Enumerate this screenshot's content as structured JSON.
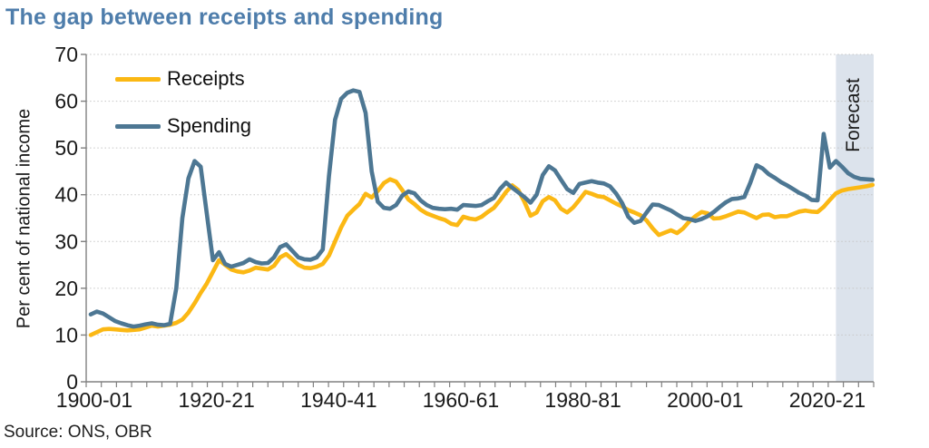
{
  "title": "The gap between receipts and spending",
  "source": "Source: ONS, OBR",
  "forecast_label": "Forecast",
  "legend": {
    "items": [
      {
        "label": "Receipts",
        "color": "#fbb814"
      },
      {
        "label": "Spending",
        "color": "#4d7793"
      }
    ]
  },
  "colors": {
    "title": "#4e7dab",
    "receipts_line": "#fbb814",
    "spending_line": "#4d7793",
    "forecast_band": "#dce3ec",
    "gridline": "#c6c6c6",
    "axis": "#808080",
    "text": "#1a1a1a"
  },
  "y_axis": {
    "title": "Per cent of national income",
    "ticks": [
      0,
      10,
      20,
      30,
      40,
      50,
      60,
      70
    ],
    "min": 0,
    "max": 70
  },
  "x_axis": {
    "labels": [
      {
        "year": 1900,
        "label": "1900-01"
      },
      {
        "year": 1920,
        "label": "1920-21"
      },
      {
        "year": 1940,
        "label": "1940-41"
      },
      {
        "year": 1960,
        "label": "1960-61"
      },
      {
        "year": 1980,
        "label": "1980-81"
      },
      {
        "year": 2000,
        "label": "2000-01"
      },
      {
        "year": 2020,
        "label": "2020-21"
      }
    ]
  },
  "forecast_band": {
    "label": "Forecast",
    "start_year": 2022,
    "end_year": 2028
  },
  "chart_data": {
    "type": "line",
    "title": "The gap between receipts and spending",
    "xlabel": "",
    "ylabel": "Per cent of national income",
    "ylim": [
      0,
      70
    ],
    "grid": "horizontal-dotted",
    "legend_position": "top-left-inside",
    "x_start_year": 1900,
    "x_end_year": 2028,
    "x_step": 1,
    "x_unit": "fiscal year",
    "annotations": [
      {
        "type": "band",
        "text": "Forecast",
        "start_year": 2022,
        "end_year": 2028
      }
    ],
    "series": [
      {
        "name": "Receipts",
        "color": "#fbb814",
        "values": [
          10.0,
          10.6,
          11.2,
          11.3,
          11.2,
          11.1,
          11.0,
          11.1,
          11.2,
          11.6,
          12.0,
          11.8,
          12.0,
          12.2,
          12.6,
          13.3,
          14.8,
          16.8,
          19.0,
          21.0,
          23.5,
          26.0,
          25.0,
          24.0,
          23.6,
          23.4,
          23.8,
          24.4,
          24.2,
          24.0,
          24.8,
          26.6,
          27.3,
          26.2,
          25.0,
          24.4,
          24.3,
          24.6,
          25.2,
          27.0,
          30.0,
          33.0,
          35.5,
          36.8,
          38.0,
          40.2,
          39.4,
          40.8,
          42.5,
          43.3,
          42.8,
          41.0,
          39.0,
          38.0,
          36.8,
          36.0,
          35.5,
          35.0,
          34.6,
          33.8,
          33.5,
          35.3,
          34.9,
          34.7,
          35.3,
          36.3,
          37.2,
          38.8,
          40.6,
          42.0,
          41.0,
          38.5,
          35.5,
          36.2,
          38.6,
          39.5,
          38.8,
          37.0,
          36.2,
          37.3,
          38.9,
          40.6,
          40.2,
          39.7,
          39.5,
          38.8,
          38.1,
          37.5,
          36.7,
          36.2,
          35.6,
          34.5,
          32.8,
          31.4,
          31.9,
          32.4,
          31.8,
          32.8,
          34.3,
          35.4,
          36.3,
          36.0,
          34.9,
          35.0,
          35.4,
          35.9,
          36.4,
          36.2,
          35.6,
          35.0,
          35.7,
          35.8,
          35.2,
          35.4,
          35.4,
          35.9,
          36.4,
          36.6,
          36.4,
          36.3,
          37.4,
          38.9,
          40.3,
          40.9,
          41.2,
          41.4,
          41.6,
          41.8,
          42.1
        ]
      },
      {
        "name": "Spending",
        "color": "#4d7793",
        "values": [
          14.4,
          15.0,
          14.6,
          13.8,
          13.0,
          12.5,
          12.1,
          11.8,
          12.0,
          12.3,
          12.5,
          12.2,
          12.1,
          12.4,
          20.0,
          35.0,
          43.5,
          47.2,
          46.0,
          36.0,
          26.0,
          27.7,
          25.2,
          24.6,
          25.0,
          25.4,
          26.2,
          25.6,
          25.3,
          25.4,
          26.6,
          28.8,
          29.4,
          28.0,
          26.6,
          26.2,
          26.1,
          26.6,
          28.3,
          44.0,
          56.0,
          60.5,
          61.8,
          62.3,
          62.0,
          57.5,
          45.0,
          38.5,
          37.2,
          37.0,
          37.8,
          39.8,
          40.7,
          40.3,
          38.8,
          37.8,
          37.2,
          37.0,
          36.9,
          37.0,
          36.8,
          37.8,
          37.7,
          37.6,
          37.8,
          38.6,
          39.3,
          41.2,
          42.6,
          41.5,
          40.5,
          39.5,
          38.3,
          40.0,
          44.2,
          46.1,
          45.2,
          43.2,
          41.2,
          40.4,
          42.3,
          42.6,
          42.9,
          42.6,
          42.4,
          41.8,
          40.3,
          38.2,
          35.3,
          34.0,
          34.4,
          36.2,
          37.9,
          37.8,
          37.2,
          36.6,
          35.8,
          35.0,
          34.8,
          34.4,
          34.8,
          35.4,
          36.3,
          37.4,
          38.4,
          39.1,
          39.2,
          39.5,
          42.6,
          46.3,
          45.6,
          44.4,
          43.6,
          42.7,
          42.0,
          41.2,
          40.4,
          39.8,
          38.9,
          38.8,
          53.0,
          45.8,
          47.2,
          46.0,
          44.6,
          43.8,
          43.4,
          43.3,
          43.2
        ]
      }
    ]
  }
}
